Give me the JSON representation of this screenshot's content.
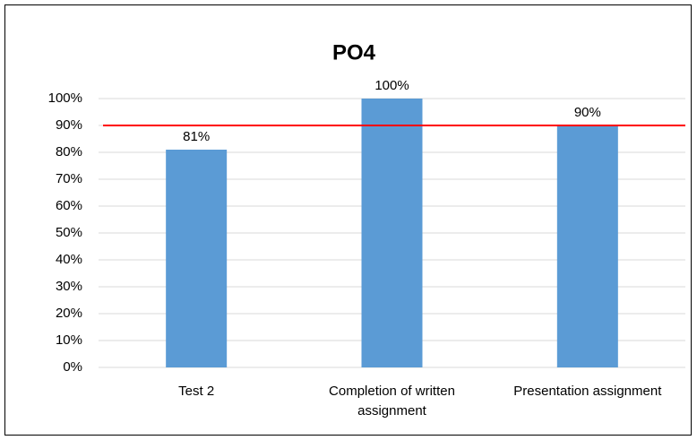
{
  "chart_data": {
    "type": "bar",
    "title": "PO4",
    "categories": [
      "Test 2",
      "Completion of written assignment",
      "Presentation assignment"
    ],
    "values": [
      81,
      100,
      90
    ],
    "value_labels": [
      "81%",
      "100%",
      "90%"
    ],
    "color": "#5b9bd5",
    "ylim": [
      0,
      100
    ],
    "yticks": [
      {
        "value": 0,
        "label": "0%"
      },
      {
        "value": 10,
        "label": "10%"
      },
      {
        "value": 20,
        "label": "20%"
      },
      {
        "value": 30,
        "label": "30%"
      },
      {
        "value": 40,
        "label": "40%"
      },
      {
        "value": 50,
        "label": "50%"
      },
      {
        "value": 60,
        "label": "60%"
      },
      {
        "value": 70,
        "label": "70%"
      },
      {
        "value": 80,
        "label": "80%"
      },
      {
        "value": 90,
        "label": "90%"
      },
      {
        "value": 100,
        "label": "100%"
      }
    ],
    "grid": true,
    "reference_line": {
      "value": 90,
      "color": "#ff0000"
    }
  }
}
